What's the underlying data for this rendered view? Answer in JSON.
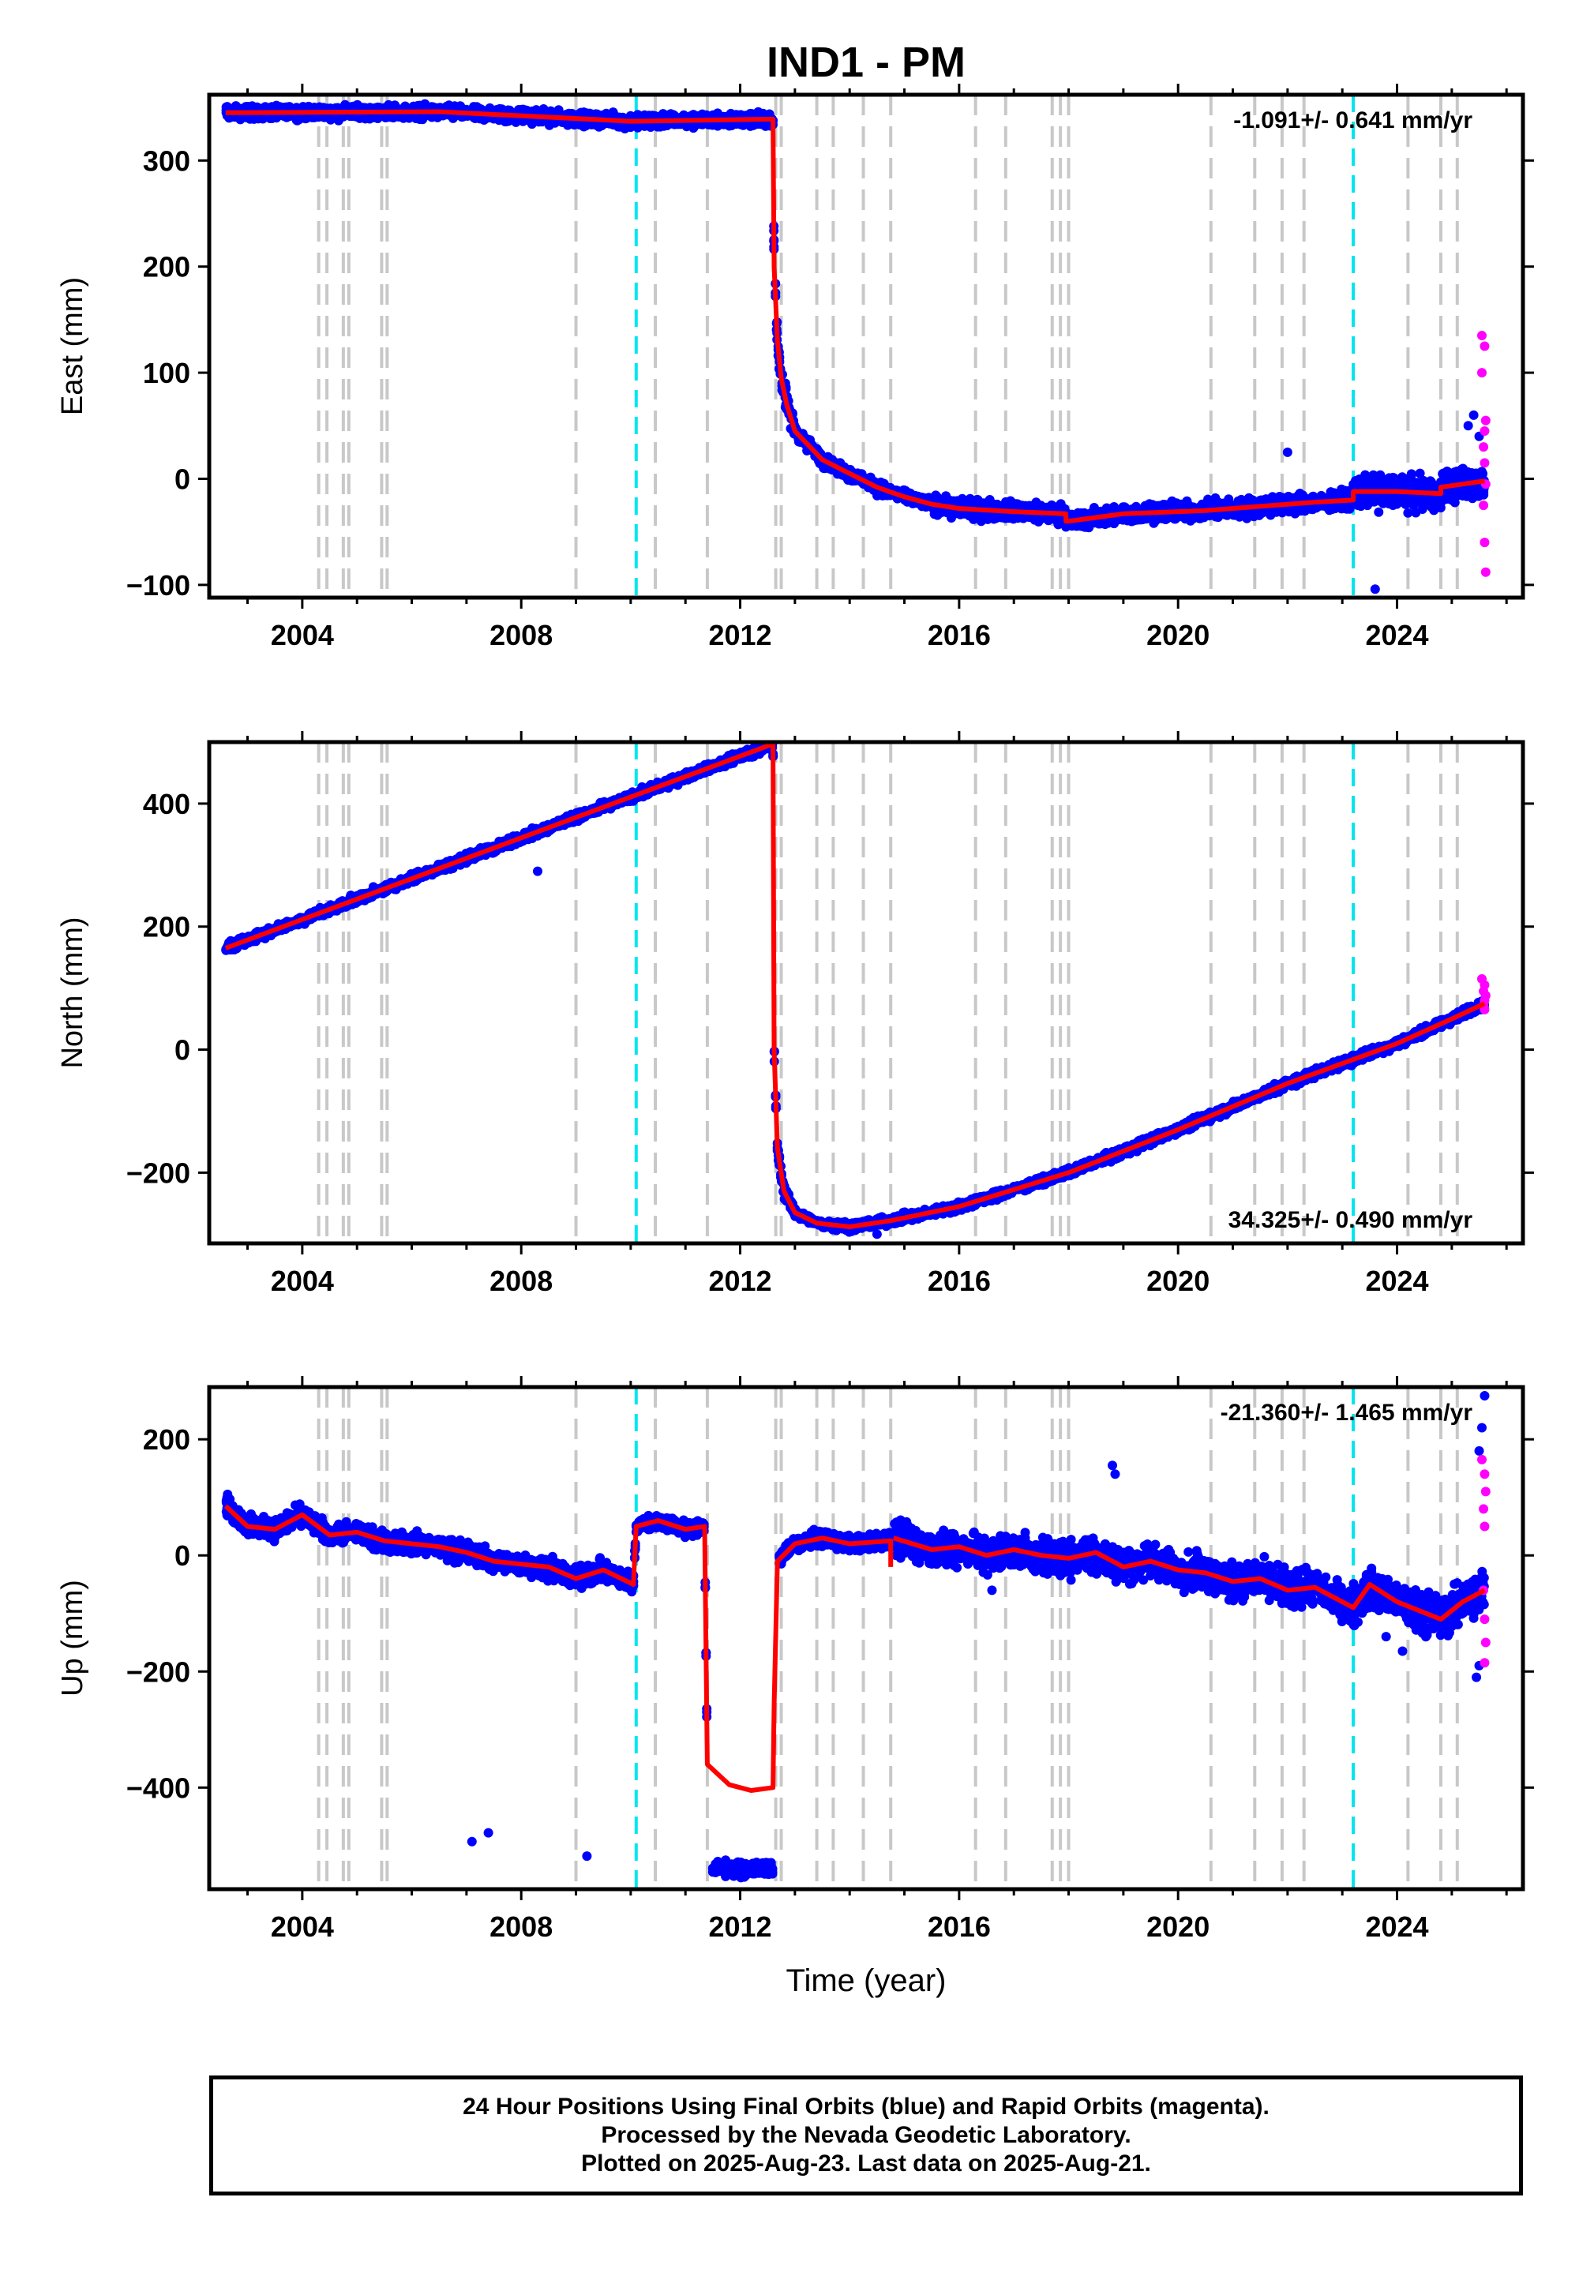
{
  "chart_data": {
    "type": "scatter",
    "title": "IND1 - PM",
    "xlabel": "Time (year)",
    "xlim": [
      2002.3,
      2026.3
    ],
    "xticks": [
      2004,
      2008,
      2012,
      2016,
      2020,
      2024
    ],
    "xtick_labels": [
      "2004",
      "2008",
      "2012",
      "2016",
      "2020",
      "2024"
    ],
    "legend": "footer box below plots",
    "colors": {
      "final": "#0000ff",
      "rapid": "#ff00ff",
      "model": "#ff0000",
      "equipment_change": "#c8c8c8",
      "earthquake": "#00e5ee"
    },
    "equipment_changes": [
      2004.3,
      2004.45,
      2004.75,
      2004.85,
      2005.45,
      2005.55,
      2009.0,
      2010.45,
      2011.4,
      2012.65,
      2012.75,
      2013.4,
      2013.7,
      2014.25,
      2014.75,
      2016.3,
      2016.85,
      2017.7,
      2017.85,
      2018.0,
      2020.6,
      2021.4,
      2021.9,
      2022.3,
      2024.2,
      2024.8,
      2025.1
    ],
    "earthquakes": [
      2010.1,
      2023.2
    ],
    "panels": [
      {
        "ylabel": "East (mm)",
        "ylim": [
          -112,
          362
        ],
        "yticks": [
          -100,
          0,
          100,
          200,
          300
        ],
        "ytick_labels": [
          "−100",
          "0",
          "100",
          "200",
          "300"
        ],
        "rate": "-1.091+/- 0.641 mm/yr",
        "rate_pos": "top-right",
        "model": [
          [
            2002.6,
            345
          ],
          [
            2006.5,
            346
          ],
          [
            2010.0,
            337
          ],
          [
            2012.6,
            339
          ],
          [
            2012.62,
            200
          ],
          [
            2012.68,
            130
          ],
          [
            2012.75,
            95
          ],
          [
            2012.85,
            70
          ],
          [
            2013.0,
            45
          ],
          [
            2013.5,
            18
          ],
          [
            2014.0,
            5
          ],
          [
            2014.5,
            -8
          ],
          [
            2015.0,
            -17
          ],
          [
            2015.5,
            -24
          ],
          [
            2016.0,
            -28
          ],
          [
            2017.0,
            -31
          ],
          [
            2017.95,
            -33
          ],
          [
            2017.95,
            -40
          ],
          [
            2018.0,
            -40
          ],
          [
            2019.0,
            -33
          ],
          [
            2020.5,
            -30
          ],
          [
            2021.5,
            -26
          ],
          [
            2022.5,
            -22
          ],
          [
            2023.2,
            -20
          ],
          [
            2023.2,
            -12
          ],
          [
            2024.0,
            -12
          ],
          [
            2024.8,
            -14
          ],
          [
            2024.8,
            -8
          ],
          [
            2025.6,
            -2
          ]
        ],
        "segments": [
          [
            2002.6,
            2012.6,
            20,
            5
          ],
          [
            2012.6,
            2013.0,
            6,
            10
          ],
          [
            2013.0,
            2015.5,
            30,
            5
          ],
          [
            2015.5,
            2023.2,
            75,
            7
          ],
          [
            2023.2,
            2025.6,
            70,
            12
          ]
        ],
        "outliers": [
          [
            2023.6,
            -104
          ],
          [
            2022.0,
            25
          ],
          [
            2025.4,
            60
          ],
          [
            2025.3,
            50
          ],
          [
            2025.5,
            40
          ]
        ],
        "rapid": [
          [
            2025.55,
            135
          ],
          [
            2025.6,
            125
          ],
          [
            2025.55,
            100
          ],
          [
            2025.62,
            55
          ],
          [
            2025.6,
            45
          ],
          [
            2025.58,
            30
          ],
          [
            2025.6,
            15
          ],
          [
            2025.62,
            -5
          ],
          [
            2025.58,
            -25
          ],
          [
            2025.6,
            -60
          ],
          [
            2025.62,
            -88
          ]
        ]
      },
      {
        "ylabel": "North (mm)",
        "ylim": [
          -315,
          500
        ],
        "yticks": [
          -200,
          0,
          200,
          400
        ],
        "ytick_labels": [
          "−200",
          "0",
          "200",
          "400"
        ],
        "rate": "34.325+/- 0.490 mm/yr",
        "rate_pos": "bottom-right",
        "model": [
          [
            2002.6,
            165
          ],
          [
            2012.6,
            497
          ],
          [
            2012.62,
            0
          ],
          [
            2012.68,
            -160
          ],
          [
            2012.8,
            -230
          ],
          [
            2013.0,
            -265
          ],
          [
            2013.4,
            -282
          ],
          [
            2014.0,
            -288
          ],
          [
            2014.75,
            -278
          ],
          [
            2016.0,
            -255
          ],
          [
            2018.0,
            -200
          ],
          [
            2020.0,
            -130
          ],
          [
            2022.0,
            -55
          ],
          [
            2024.0,
            10
          ],
          [
            2025.0,
            50
          ],
          [
            2025.6,
            75
          ]
        ],
        "segments": [
          [
            2002.6,
            2012.6,
            18,
            6
          ],
          [
            2012.6,
            2013.0,
            6,
            10
          ],
          [
            2013.0,
            2014.8,
            25,
            6
          ],
          [
            2014.8,
            2025.6,
            95,
            6
          ]
        ],
        "outliers": [
          [
            2008.3,
            290
          ],
          [
            2014.5,
            -300
          ]
        ],
        "rapid": [
          [
            2025.55,
            115
          ],
          [
            2025.6,
            105
          ],
          [
            2025.58,
            95
          ],
          [
            2025.62,
            88
          ],
          [
            2025.6,
            80
          ],
          [
            2025.58,
            72
          ],
          [
            2025.6,
            65
          ]
        ]
      },
      {
        "ylabel": "Up (mm)",
        "ylim": [
          -575,
          290
        ],
        "yticks": [
          -400,
          -200,
          0,
          200
        ],
        "ytick_labels": [
          "−400",
          "−200",
          "0",
          "200"
        ],
        "rate": "-21.360+/- 1.465 mm/yr",
        "rate_pos": "top-right",
        "model": [
          [
            2002.6,
            85
          ],
          [
            2003.0,
            50
          ],
          [
            2003.5,
            45
          ],
          [
            2004.0,
            70
          ],
          [
            2004.5,
            35
          ],
          [
            2005.0,
            40
          ],
          [
            2005.5,
            25
          ],
          [
            2006.0,
            20
          ],
          [
            2006.5,
            15
          ],
          [
            2007.0,
            5
          ],
          [
            2007.5,
            -10
          ],
          [
            2008.0,
            -15
          ],
          [
            2008.5,
            -20
          ],
          [
            2009.0,
            -40
          ],
          [
            2009.5,
            -25
          ],
          [
            2010.05,
            -50
          ],
          [
            2010.1,
            50
          ],
          [
            2010.5,
            60
          ],
          [
            2011.0,
            45
          ],
          [
            2011.35,
            50
          ],
          [
            2011.4,
            -360
          ],
          [
            2011.8,
            -395
          ],
          [
            2012.2,
            -405
          ],
          [
            2012.6,
            -400
          ],
          [
            2012.62,
            -260
          ],
          [
            2012.68,
            -10
          ],
          [
            2013.0,
            20
          ],
          [
            2013.5,
            30
          ],
          [
            2014.0,
            20
          ],
          [
            2014.75,
            25
          ],
          [
            2014.75,
            -20
          ]
        ],
        "model2": [
          [
            2014.8,
            30
          ],
          [
            2015.5,
            10
          ],
          [
            2016.0,
            15
          ],
          [
            2016.5,
            0
          ],
          [
            2017.0,
            10
          ],
          [
            2017.5,
            0
          ],
          [
            2018.0,
            -5
          ],
          [
            2018.5,
            5
          ],
          [
            2019.0,
            -20
          ],
          [
            2019.5,
            -10
          ],
          [
            2020.0,
            -25
          ],
          [
            2020.5,
            -30
          ],
          [
            2021.0,
            -45
          ],
          [
            2021.5,
            -40
          ],
          [
            2022.0,
            -60
          ],
          [
            2022.5,
            -55
          ],
          [
            2023.2,
            -90
          ],
          [
            2023.5,
            -50
          ],
          [
            2024.0,
            -80
          ],
          [
            2024.8,
            -110
          ],
          [
            2025.2,
            -80
          ],
          [
            2025.6,
            -60
          ]
        ],
        "segments": [
          [
            2002.6,
            2010.1,
            40,
            15
          ],
          [
            2010.1,
            2011.4,
            45,
            10
          ],
          [
            2011.5,
            2012.6,
            -540,
            10
          ],
          [
            2012.7,
            2014.75,
            25,
            12
          ],
          [
            2014.8,
            2023.2,
            10,
            25
          ],
          [
            2023.2,
            2025.6,
            -75,
            30
          ]
        ],
        "outliers": [
          [
            2007.4,
            -478
          ],
          [
            2007.1,
            -493
          ],
          [
            2009.2,
            -518
          ],
          [
            2018.8,
            155
          ],
          [
            2018.85,
            140
          ],
          [
            2025.6,
            275
          ],
          [
            2025.55,
            220
          ],
          [
            2025.5,
            180
          ],
          [
            2025.5,
            -190
          ],
          [
            2025.45,
            -210
          ],
          [
            2024.1,
            -165
          ],
          [
            2023.8,
            -140
          ],
          [
            2020.0,
            -30
          ],
          [
            2016.6,
            -60
          ]
        ],
        "rapid": [
          [
            2025.55,
            165
          ],
          [
            2025.6,
            140
          ],
          [
            2025.62,
            110
          ],
          [
            2025.58,
            80
          ],
          [
            2025.6,
            50
          ],
          [
            2025.58,
            -60
          ],
          [
            2025.6,
            -110
          ],
          [
            2025.62,
            -150
          ],
          [
            2025.6,
            -185
          ]
        ]
      }
    ]
  },
  "footer": {
    "line1": "24 Hour Positions Using Final Orbits (blue) and Rapid Orbits (magenta).",
    "line2": "Processed by the Nevada Geodetic Laboratory.",
    "line3": "Plotted on 2025-Aug-23. Last data on 2025-Aug-21."
  }
}
